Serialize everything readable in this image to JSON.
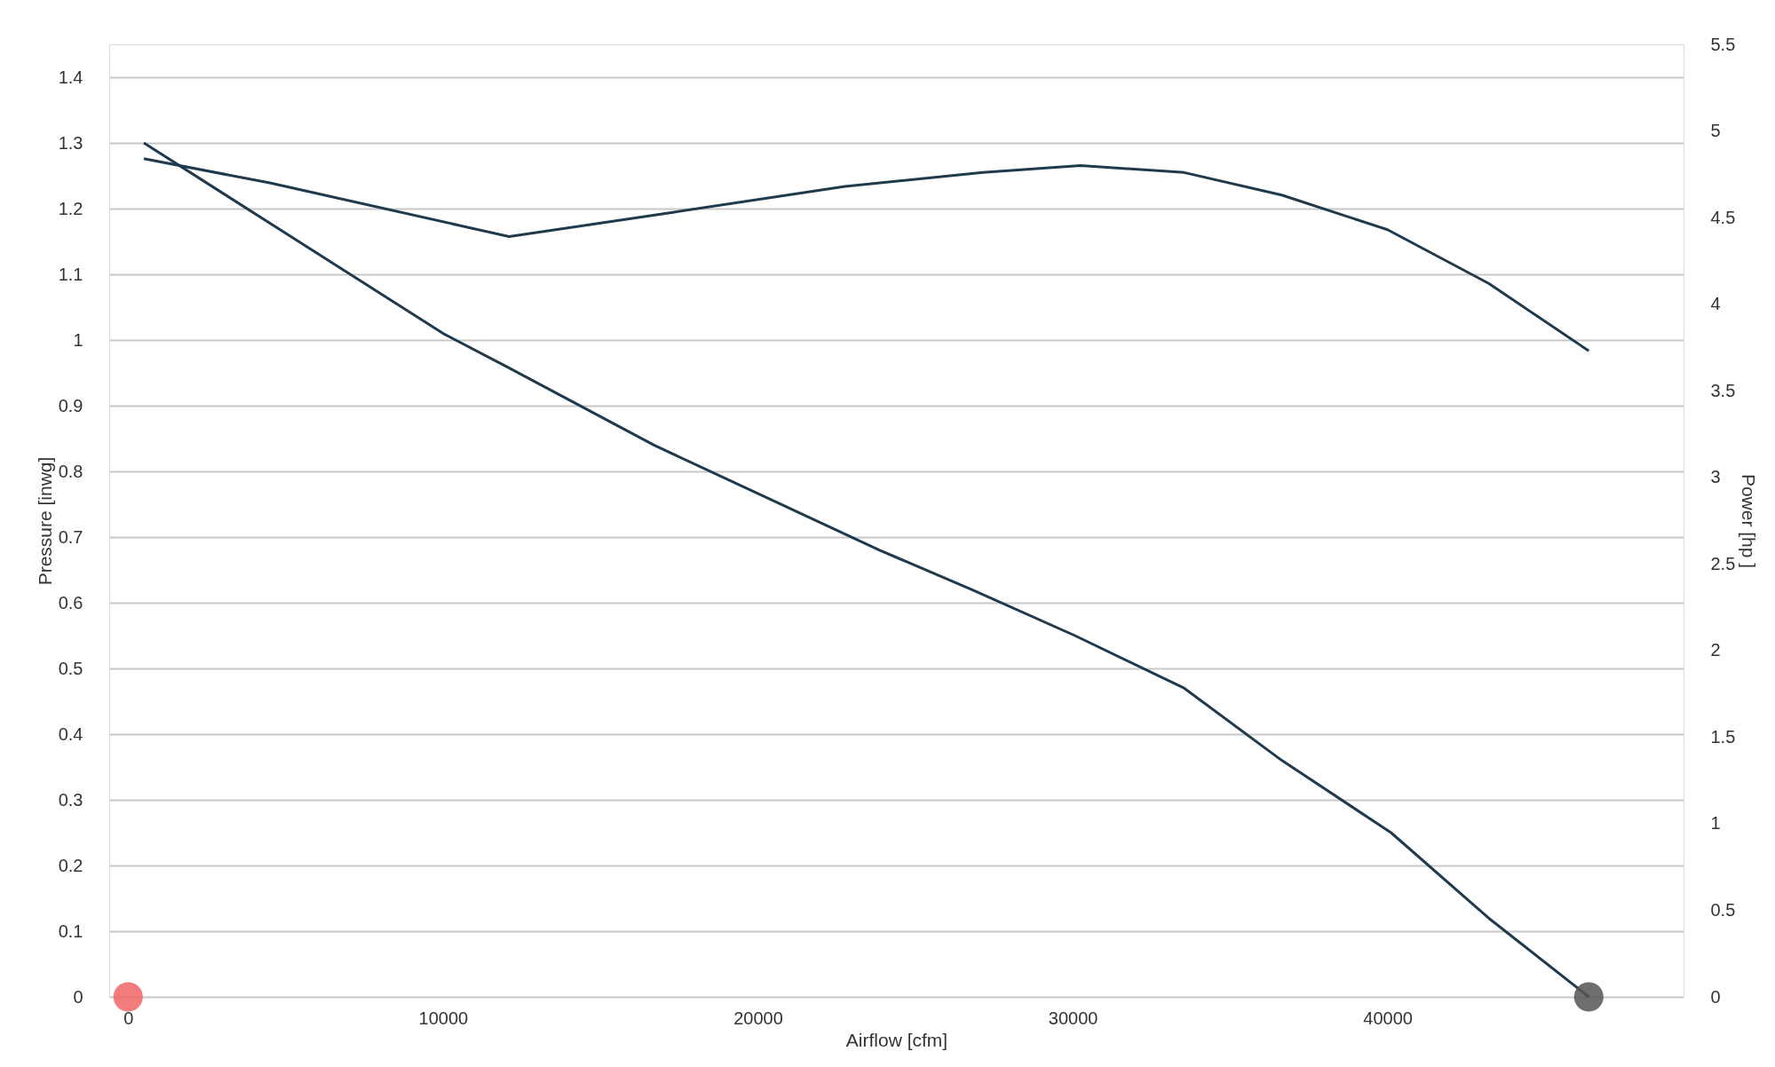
{
  "chart_data": {
    "type": "line",
    "xlabel": "Airflow [cfm]",
    "ylabel": "Pressure [inwg]",
    "y2label": "Power [hp ]",
    "xlim": [
      -600,
      49400
    ],
    "xticks": [
      0,
      10000,
      20000,
      30000,
      40000
    ],
    "ylim": [
      0,
      1.45
    ],
    "yticks": [
      0,
      0.1,
      0.2,
      0.3,
      0.4,
      0.5,
      0.6,
      0.7,
      0.8,
      0.9,
      1,
      1.1,
      1.2,
      1.3,
      1.4
    ],
    "y2lim": [
      0,
      5.5
    ],
    "y2ticks": [
      0,
      0.5,
      1,
      1.5,
      2,
      2.5,
      3,
      3.5,
      4,
      4.5,
      5,
      5.5
    ],
    "grid": "y",
    "line_style": "solid",
    "series": [
      {
        "color": "#1f3a4c",
        "marker": "none",
        "x": [
          500,
          10000,
          12000,
          16700,
          20950,
          23870,
          26790,
          30070,
          33540,
          36640,
          40110,
          43210,
          46390
        ],
        "values": [
          1.3,
          1.01,
          0.96,
          0.84,
          0.745,
          0.68,
          0.62,
          0.55,
          0.47,
          0.36,
          0.25,
          0.12,
          0
        ]
      },
      {
        "axis": "y2",
        "marker": "none",
        "color": "#1f3a4c",
        "x": [
          500,
          4500,
          12100,
          17300,
          22770,
          27150,
          30250,
          33540,
          36640,
          40000,
          43210,
          46390
        ],
        "values": [
          4.84,
          4.7,
          4.39,
          4.53,
          4.68,
          4.76,
          4.8,
          4.76,
          4.63,
          4.43,
          4.12,
          3.73
        ]
      },
      {
        "type": "scatter",
        "marker": "circle",
        "color": "#f06464",
        "x": [
          0
        ],
        "values": [
          0
        ]
      },
      {
        "type": "scatter",
        "marker": "circle",
        "color": "#555555",
        "x": [
          46390
        ],
        "values": [
          0
        ]
      }
    ]
  }
}
